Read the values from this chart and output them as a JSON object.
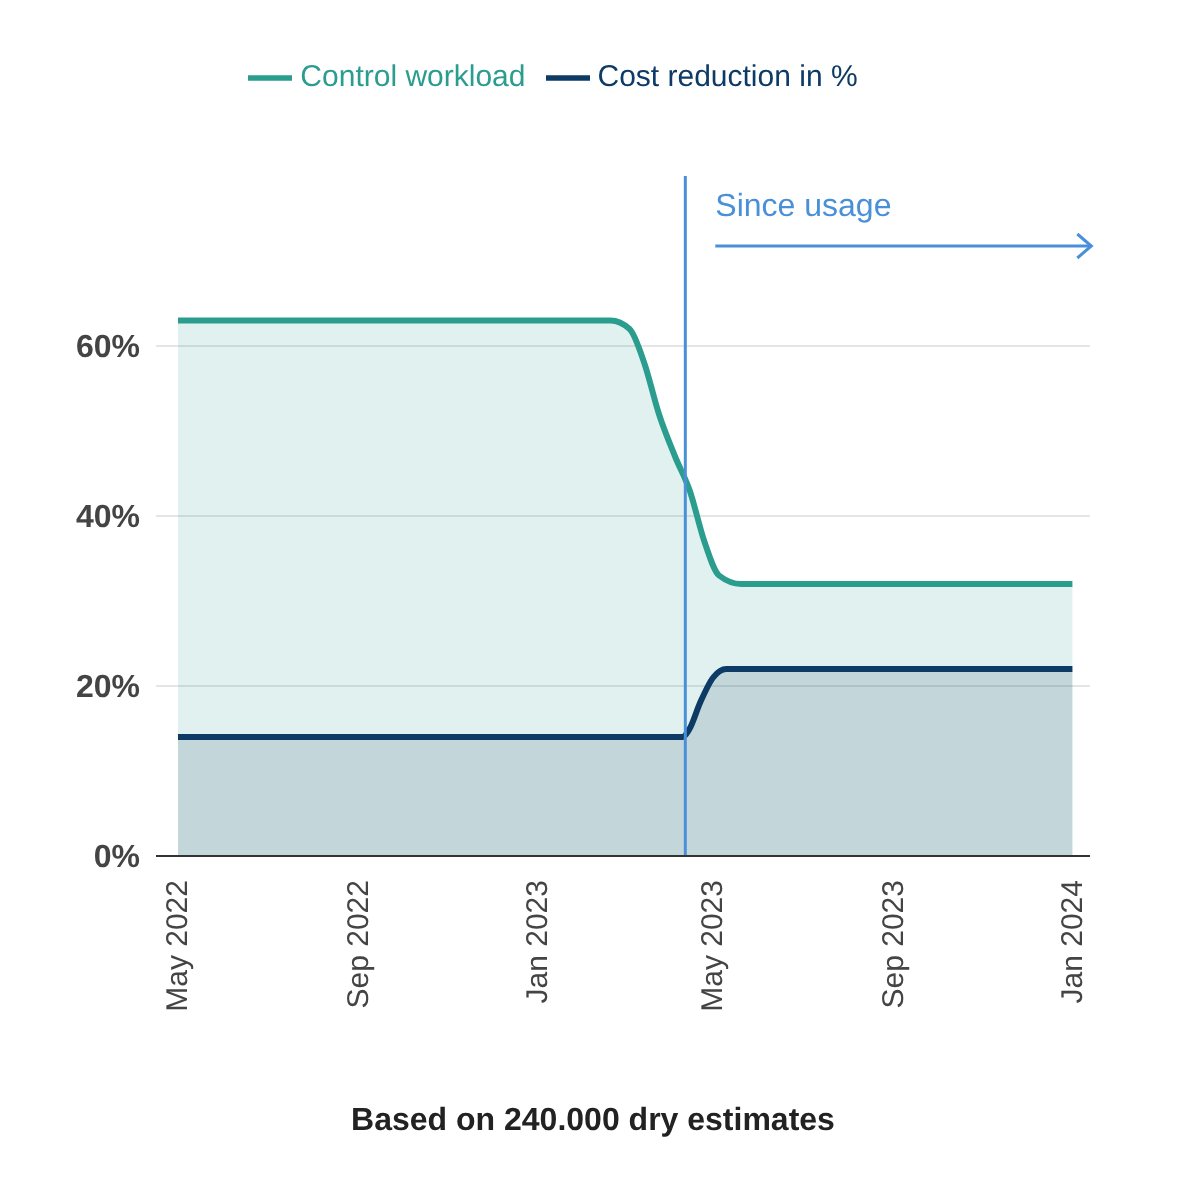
{
  "chart_data": {
    "type": "area",
    "annotations": [
      "Based on 240.000 dry estimates"
    ],
    "xlim": [
      "2022-04-16",
      "2024-01-13"
    ],
    "xticks": [
      {
        "value": "2022-05-01",
        "label": "May 2022"
      },
      {
        "value": "2022-09-01",
        "label": "Sep 2022"
      },
      {
        "value": "2023-01-01",
        "label": "Jan 2023"
      },
      {
        "value": "2023-05-01",
        "label": "May 2023"
      },
      {
        "value": "2023-09-01",
        "label": "Sep 2023"
      },
      {
        "value": "2024-01-01",
        "label": "Jan 2024"
      }
    ],
    "ylim": [
      0,
      80
    ],
    "yticks": [
      {
        "value": 0,
        "label": "0%"
      },
      {
        "value": 20,
        "label": "20%"
      },
      {
        "value": 40,
        "label": "40%"
      },
      {
        "value": 60,
        "label": "60%"
      }
    ],
    "series": [
      {
        "name": "Control workload",
        "color": "#2a9d8f",
        "x": [
          "2022-05-01",
          "2023-02-20",
          "2023-03-05",
          "2023-03-15",
          "2023-03-25",
          "2023-04-05",
          "2023-04-15",
          "2023-04-25",
          "2023-05-05",
          "2023-05-20",
          "2024-01-01"
        ],
        "values": [
          63,
          63,
          62,
          58,
          52,
          47,
          43,
          37,
          33,
          32,
          32
        ]
      },
      {
        "name": "Cost reduction in %",
        "color": "#0d3b66",
        "x": [
          "2022-05-01",
          "2023-04-10",
          "2023-04-15",
          "2023-04-22",
          "2023-05-01",
          "2023-05-10",
          "2024-01-01"
        ],
        "values": [
          14,
          14,
          15,
          18,
          21,
          22,
          22
        ]
      }
    ],
    "ref_lines": [
      {
        "axis": "x",
        "value": "2023-04-12",
        "label": "Since usage",
        "color": "#4a90d9"
      }
    ],
    "grid": "y",
    "legend": "top",
    "marker": "none",
    "line_style": "solid"
  }
}
